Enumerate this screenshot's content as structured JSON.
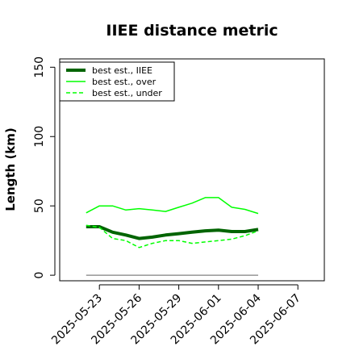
{
  "chart_data": {
    "type": "line",
    "title": "IIEE distance metric",
    "xlabel": "",
    "ylabel": "Length (km)",
    "x": [
      "2025-05-22",
      "2025-05-23",
      "2025-05-24",
      "2025-05-25",
      "2025-05-26",
      "2025-05-27",
      "2025-05-28",
      "2025-05-29",
      "2025-05-30",
      "2025-05-31",
      "2025-06-01",
      "2025-06-02",
      "2025-06-03",
      "2025-06-04"
    ],
    "xlim": [
      "2025-05-20",
      "2025-06-09"
    ],
    "ylim": [
      -4,
      156
    ],
    "xticks": [
      "2025-05-23",
      "2025-05-26",
      "2025-05-29",
      "2025-06-01",
      "2025-06-04",
      "2025-06-07"
    ],
    "yticks": [
      0,
      50,
      100,
      150
    ],
    "grid": false,
    "legend_position": "top-left",
    "series": [
      {
        "name": "best est., IIEE",
        "color": "#006400",
        "style": "solid-thick",
        "values": [
          35,
          35,
          31,
          29,
          26.5,
          27.5,
          29,
          30,
          31,
          32,
          32.5,
          31.5,
          31.5,
          33
        ]
      },
      {
        "name": "best est., over",
        "color": "#00ff00",
        "style": "solid",
        "values": [
          45,
          50,
          50,
          47,
          48,
          47,
          46,
          49,
          52,
          56,
          56,
          49,
          47.5,
          44.5
        ]
      },
      {
        "name": "best est., under",
        "color": "#00ff00",
        "style": "dashed",
        "values": [
          36,
          34.5,
          26.5,
          25,
          20,
          23,
          25,
          25,
          23,
          24,
          25,
          26,
          28.5,
          32
        ]
      },
      {
        "name": "",
        "color": "#808080",
        "style": "solid-thin",
        "values": [
          0,
          0,
          0,
          0,
          0,
          0,
          0,
          0,
          0,
          0,
          0,
          0,
          0,
          0
        ]
      }
    ]
  }
}
